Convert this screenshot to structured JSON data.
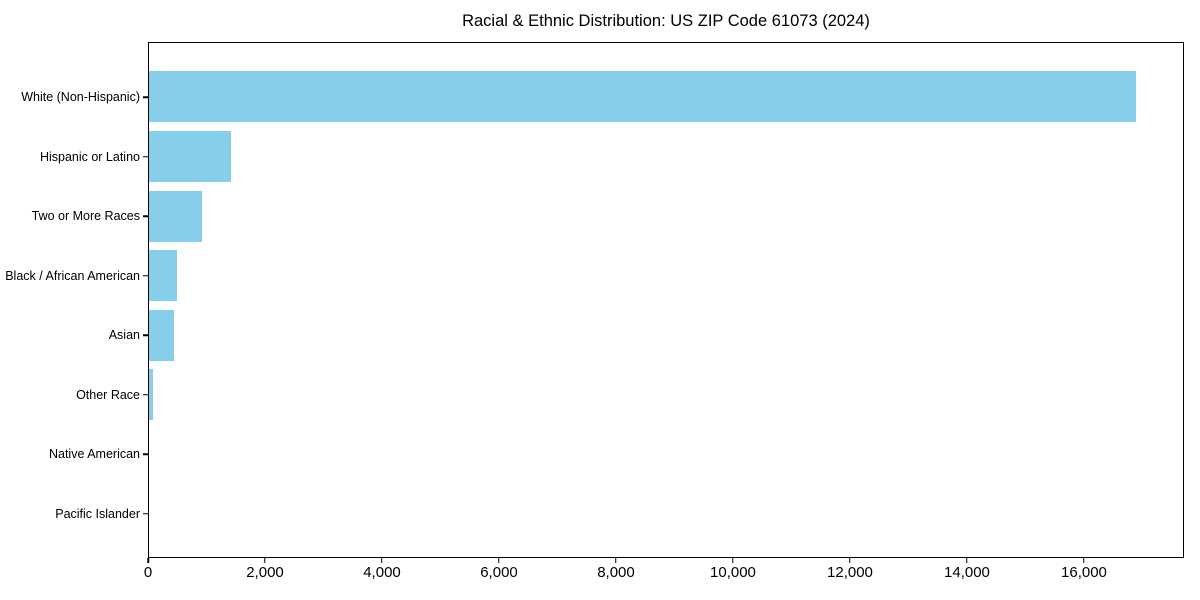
{
  "chart_data": {
    "type": "bar",
    "orientation": "horizontal",
    "title": "Racial & Ethnic Distribution: US ZIP Code 61073 (2024)",
    "categories": [
      "White (Non-Hispanic)",
      "Hispanic or Latino",
      "Two or More Races",
      "Black / African American",
      "Asian",
      "Other Race",
      "Native American",
      "Pacific Islander"
    ],
    "values": [
      16900,
      1410,
      915,
      485,
      430,
      60,
      0,
      0
    ],
    "xlabel": "",
    "ylabel": "",
    "xlim": [
      0,
      17710
    ],
    "x_ticks": [
      0,
      2000,
      4000,
      6000,
      8000,
      10000,
      12000,
      14000,
      16000
    ],
    "x_tick_labels": [
      "0",
      "2,000",
      "4,000",
      "6,000",
      "8,000",
      "10,000",
      "12,000",
      "14,000",
      "16,000"
    ],
    "bar_color": "#87CEEB",
    "axis_color": "#000000",
    "text_color": "#000000",
    "grid": false,
    "legend": "none"
  }
}
